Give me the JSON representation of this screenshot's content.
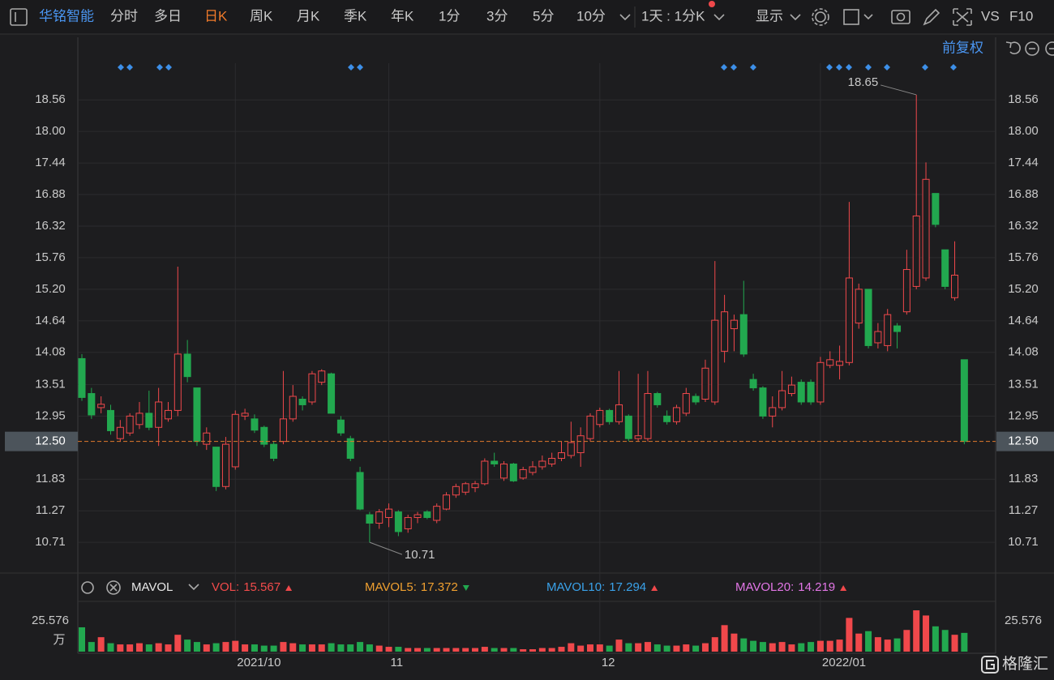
{
  "toolbar": {
    "stock": "华铭智能",
    "tabs": [
      "分时",
      "多日",
      "日K",
      "周K",
      "月K",
      "季K",
      "年K",
      "1分",
      "3分",
      "5分",
      "10分"
    ],
    "active_tab": 2,
    "period": "1天 : 1分K",
    "display": "显示",
    "vs": "VS",
    "f10": "F10",
    "adjust": "前复权"
  },
  "chart_data": [
    {
      "type": "candlestick",
      "categories": [
        null,
        null,
        null,
        null,
        null,
        null,
        null,
        null,
        null,
        null,
        null,
        null,
        null,
        null,
        null,
        null,
        "2021/10",
        null,
        null,
        null,
        null,
        null,
        null,
        null,
        null,
        null,
        null,
        null,
        null,
        null,
        null,
        null,
        "11",
        null,
        null,
        null,
        null,
        null,
        null,
        null,
        null,
        null,
        null,
        null,
        null,
        null,
        null,
        null,
        null,
        null,
        null,
        null,
        null,
        null,
        "12",
        null,
        null,
        null,
        null,
        null,
        null,
        null,
        null,
        null,
        null,
        null,
        null,
        null,
        null,
        null,
        null,
        null,
        null,
        null,
        null,
        null,
        null,
        "2022/01",
        null,
        null,
        null,
        null,
        null,
        null,
        null,
        null,
        null,
        null,
        null,
        null,
        null,
        null,
        null
      ],
      "open": [
        13.97,
        13.35,
        13.1,
        13.05,
        12.55,
        12.65,
        12.8,
        13.0,
        12.75,
        12.9,
        13.05,
        14.05,
        13.45,
        12.45,
        12.4,
        11.7,
        12.05,
        12.95,
        12.9,
        12.75,
        12.45,
        12.5,
        12.9,
        13.25,
        13.2,
        13.55,
        13.7,
        12.88,
        12.55,
        11.95,
        11.2,
        11.05,
        11.15,
        11.25,
        10.95,
        11.15,
        11.25,
        11.1,
        11.3,
        11.55,
        11.6,
        11.68,
        11.75,
        12.15,
        11.85,
        12.1,
        11.85,
        11.95,
        12.05,
        12.1,
        12.2,
        12.25,
        12.3,
        12.55,
        12.8,
        13.05,
        12.85,
        12.95,
        12.55,
        12.55,
        13.35,
        12.95,
        12.85,
        13.0,
        13.3,
        13.25,
        13.2,
        14.1,
        14.5,
        14.75,
        13.6,
        13.45,
        12.95,
        13.1,
        13.35,
        13.55,
        13.55,
        13.2,
        13.85,
        13.85,
        13.9,
        14.6,
        15.2,
        14.25,
        14.2,
        14.55,
        14.8,
        15.25,
        15.4,
        16.9,
        15.9,
        15.05,
        13.95
      ],
      "high": [
        14.05,
        13.45,
        13.3,
        13.15,
        12.88,
        13.0,
        13.2,
        13.4,
        13.45,
        13.2,
        15.6,
        14.3,
        13.45,
        12.75,
        12.4,
        12.58,
        13.05,
        13.08,
        12.98,
        12.78,
        12.5,
        13.75,
        13.5,
        13.3,
        13.75,
        13.78,
        13.72,
        12.95,
        12.6,
        12.05,
        11.25,
        11.3,
        11.4,
        11.28,
        11.2,
        11.25,
        11.28,
        11.4,
        11.6,
        11.75,
        11.78,
        11.8,
        12.2,
        12.3,
        12.15,
        12.12,
        12.05,
        12.15,
        12.25,
        12.3,
        12.5,
        12.85,
        12.75,
        13.0,
        13.1,
        13.08,
        13.75,
        12.98,
        13.7,
        13.75,
        13.38,
        13.05,
        13.15,
        13.45,
        13.35,
        13.95,
        15.7,
        15.1,
        14.75,
        15.35,
        13.7,
        13.48,
        13.3,
        13.75,
        13.65,
        13.6,
        13.6,
        14.0,
        14.1,
        14.2,
        16.75,
        15.3,
        15.2,
        14.6,
        14.85,
        14.6,
        15.9,
        18.65,
        17.45,
        16.9,
        15.9,
        16.05,
        13.95
      ],
      "low": [
        13.22,
        12.9,
        13.0,
        12.62,
        12.5,
        12.6,
        12.72,
        12.7,
        12.42,
        12.85,
        12.95,
        13.55,
        12.42,
        12.35,
        11.62,
        11.65,
        12.0,
        12.88,
        12.65,
        12.4,
        12.15,
        12.45,
        12.85,
        13.05,
        13.15,
        13.5,
        13.0,
        12.6,
        12.15,
        11.28,
        10.71,
        10.95,
        10.98,
        10.82,
        10.88,
        11.05,
        11.12,
        11.05,
        11.28,
        11.5,
        11.55,
        11.6,
        11.72,
        12.05,
        11.8,
        11.78,
        11.82,
        11.9,
        12.0,
        12.05,
        12.15,
        12.2,
        12.05,
        12.5,
        12.75,
        12.8,
        12.8,
        12.5,
        12.5,
        12.5,
        13.1,
        12.8,
        12.8,
        12.95,
        13.15,
        13.2,
        13.15,
        13.9,
        14.1,
        14.0,
        13.4,
        12.9,
        12.75,
        13.05,
        13.3,
        13.15,
        13.15,
        13.15,
        13.8,
        13.6,
        13.85,
        14.5,
        14.15,
        14.15,
        14.1,
        14.15,
        14.75,
        15.2,
        15.35,
        16.3,
        15.2,
        15.0,
        12.45
      ],
      "close": [
        13.28,
        12.97,
        13.16,
        12.69,
        12.75,
        12.95,
        13.0,
        12.75,
        13.2,
        13.05,
        14.05,
        13.65,
        12.5,
        12.65,
        11.7,
        12.45,
        12.98,
        13.0,
        12.7,
        12.45,
        12.2,
        12.9,
        13.3,
        13.15,
        13.7,
        13.75,
        13.0,
        12.65,
        12.2,
        11.3,
        11.05,
        11.25,
        11.3,
        10.9,
        11.15,
        11.2,
        11.15,
        11.35,
        11.55,
        11.7,
        11.75,
        11.75,
        12.15,
        12.1,
        12.1,
        11.8,
        12.0,
        12.05,
        12.15,
        12.2,
        12.3,
        12.48,
        12.6,
        12.95,
        13.05,
        12.85,
        13.15,
        12.55,
        12.6,
        13.35,
        13.15,
        12.85,
        13.1,
        13.35,
        13.2,
        13.8,
        14.65,
        14.8,
        14.65,
        14.05,
        13.45,
        12.95,
        13.1,
        13.4,
        13.5,
        13.2,
        13.2,
        13.9,
        13.95,
        13.92,
        15.4,
        15.2,
        14.2,
        14.45,
        14.75,
        14.45,
        15.55,
        16.5,
        17.15,
        16.35,
        15.25,
        15.45,
        12.5
      ],
      "up_color": "#f0484b",
      "down_color": "#22a84f",
      "ylim": [
        10.18,
        19.21
      ],
      "yticks": [
        18.56,
        {
          "value": 18,
          "label": "18.00"
        },
        17.44,
        16.88,
        16.32,
        15.76,
        {
          "value": 15.2,
          "label": "15.20"
        },
        14.64,
        14.08,
        13.51,
        12.95,
        11.83,
        11.27,
        10.71
      ],
      "last_price": {
        "value": 12.5,
        "label": "12.50"
      },
      "last_price_color": "#e07a2c",
      "grid": true
    },
    {
      "type": "bar",
      "indicator": "MAVOL",
      "unit": "万",
      "values": [
        20.2,
        8,
        12,
        7,
        6,
        6,
        7,
        6,
        7,
        6,
        14,
        10,
        8,
        6,
        7,
        8,
        9,
        6,
        6,
        5,
        5,
        8,
        7,
        6,
        6,
        6,
        7,
        6,
        6,
        8,
        6,
        5,
        4,
        4,
        3,
        3,
        3,
        3,
        3,
        3,
        3,
        3,
        4,
        3,
        3,
        3,
        2,
        2,
        3,
        3,
        4,
        7,
        5,
        6,
        6,
        5,
        10,
        7,
        7,
        8,
        6,
        5,
        5,
        6,
        5,
        7,
        12,
        22,
        15,
        11,
        9,
        8,
        7,
        8,
        6,
        7,
        8,
        9,
        9,
        10,
        28,
        15,
        17,
        12,
        10,
        11,
        18,
        34.3,
        30,
        21,
        18,
        14,
        15.567
      ],
      "ylim": [
        0,
        39.7
      ],
      "yticks": [
        25.576
      ],
      "legend": [
        {
          "name": "VOL:",
          "value": 15.567,
          "color": "#f24b4b",
          "trend": "up"
        },
        {
          "name": "MAVOL5:",
          "value": 17.372,
          "color": "#f0a030",
          "trend": "down"
        },
        {
          "name": "MAVOL10:",
          "value": 17.294,
          "color": "#3aa2ea",
          "trend": "up"
        },
        {
          "name": "MAVOL20:",
          "value": 14.219,
          "color": "#e276e6",
          "trend": "up"
        }
      ]
    }
  ],
  "watermark": "格隆汇"
}
